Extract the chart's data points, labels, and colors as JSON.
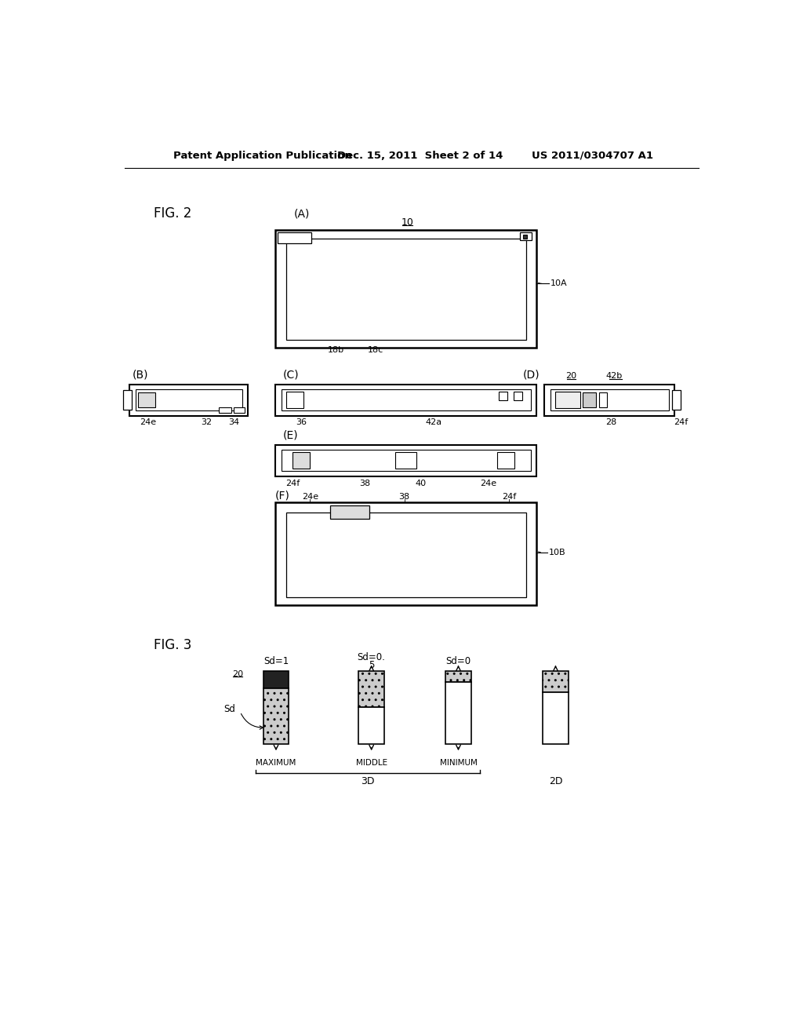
{
  "bg_color": "#ffffff",
  "header_left": "Patent Application Publication",
  "header_mid": "Dec. 15, 2011  Sheet 2 of 14",
  "header_right": "US 2011/0304707 A1"
}
